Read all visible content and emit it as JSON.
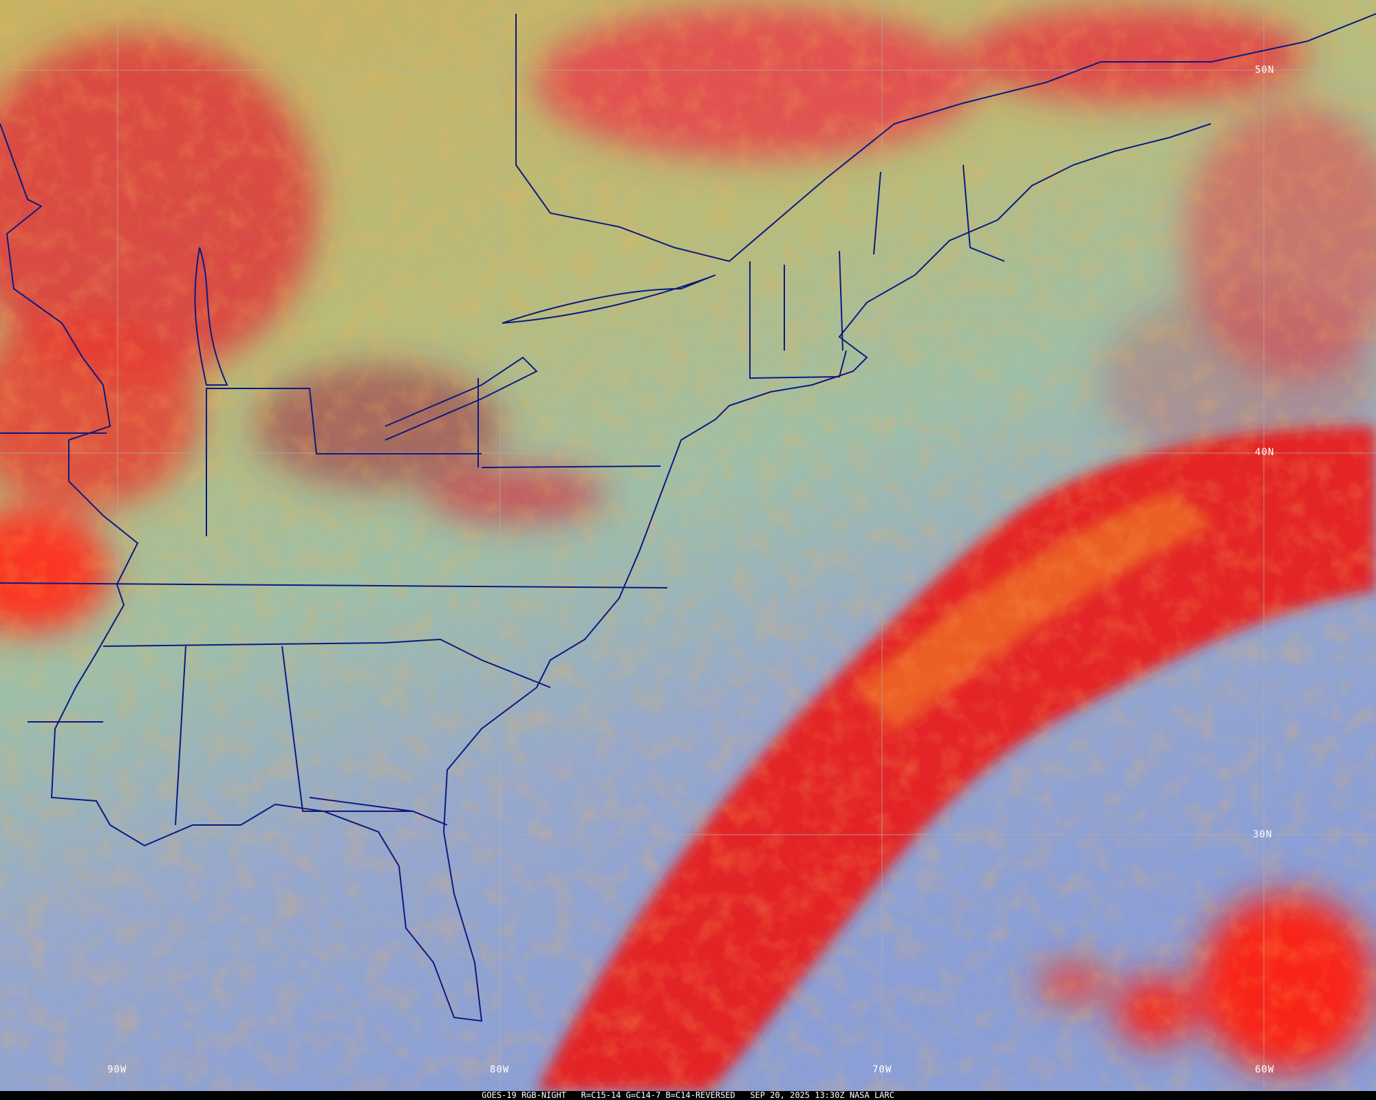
{
  "product": "GOES-19 RGB-NIGHT",
  "caption": {
    "satellite_product": "GOES-19 RGB-NIGHT",
    "channels": "R=C15-14 G=C14-7 B=C14-REVERSED",
    "datetime": "SEP 20, 2025 13:30Z",
    "source": "NASA LARC"
  },
  "latitude_labels": [
    "50N",
    "40N",
    "30N"
  ],
  "longitude_labels": [
    "90W",
    "80W",
    "70W",
    "60W"
  ],
  "colors": {
    "high_cloud": "#e8202a",
    "low_cloud_land": "#c9b25a",
    "clear_ocean": "#8ea4d6",
    "clear_land": "#9dbf9a",
    "boundaries": "#0a1a80",
    "gridlines": "#b0b0b0"
  }
}
